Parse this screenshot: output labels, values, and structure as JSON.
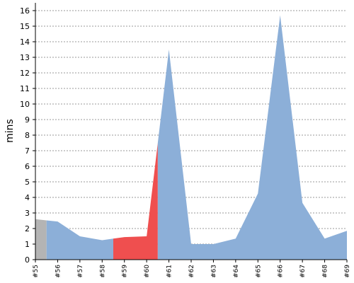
{
  "chart_data": {
    "type": "area",
    "ylabel": "mins",
    "xlabel": "",
    "title": "",
    "ylim": [
      0,
      16.5
    ],
    "yticks": [
      0,
      1,
      2,
      3,
      4,
      5,
      6,
      7,
      8,
      9,
      10,
      11,
      12,
      13,
      14,
      15,
      16
    ],
    "grid": true,
    "categories": [
      "#55",
      "#56",
      "#57",
      "#58",
      "#59",
      "#60",
      "#61",
      "#62",
      "#63",
      "#64",
      "#65",
      "#66",
      "#67",
      "#68",
      "#69"
    ],
    "values": [
      2.6,
      2.45,
      1.5,
      1.25,
      1.45,
      1.5,
      13.5,
      1.0,
      1.0,
      1.35,
      4.25,
      15.7,
      3.65,
      1.35,
      1.85
    ],
    "segment_colors": {
      "aborted": "#b4b4b4",
      "success": "#8cafd8",
      "failed": "#ef4f4f"
    },
    "segments": [
      {
        "from": 0,
        "to": 0.5,
        "status": "aborted"
      },
      {
        "from": 0.5,
        "to": 3.5,
        "status": "success"
      },
      {
        "from": 3.5,
        "to": 5.5,
        "status": "failed"
      },
      {
        "from": 5.5,
        "to": 14,
        "status": "success"
      }
    ]
  }
}
